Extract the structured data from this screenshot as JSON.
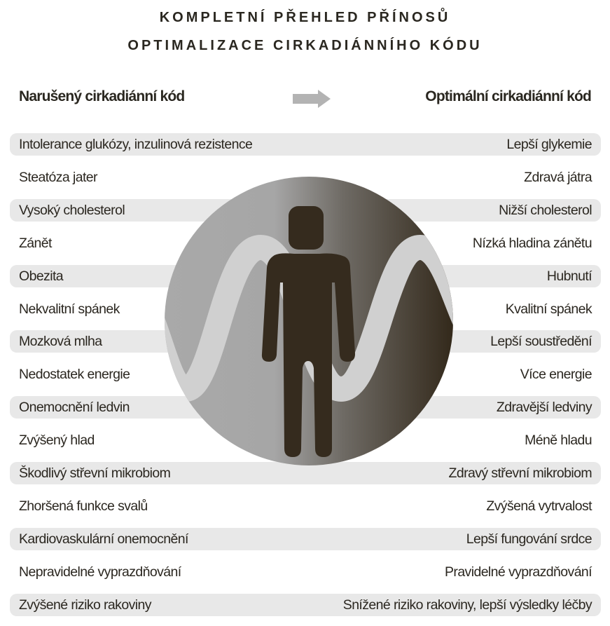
{
  "title": {
    "line1": "KOMPLETNÍ PŘEHLED PŘÍNOSŮ",
    "line2": "OPTIMALIZACE CIRKADIÁNNÍHO KÓDU"
  },
  "headers": {
    "left": "Narušený cirkadiánní kód",
    "right": "Optimální cirkadiánní kód",
    "arrow_icon": "arrow-right-icon"
  },
  "colors": {
    "row_shade": "#e8e8e8",
    "text": "#2b2720",
    "figure": "#352b1e",
    "arrow": "#b3b3b3"
  },
  "rows": [
    {
      "left": "Intolerance glukózy, inzulinová rezistence",
      "right": "Lepší glykemie"
    },
    {
      "left": "Steatóza jater",
      "right": "Zdravá játra"
    },
    {
      "left": "Vysoký cholesterol",
      "right": "Nižší cholesterol"
    },
    {
      "left": "Zánět",
      "right": "Nízká hladina zánětu"
    },
    {
      "left": "Obezita",
      "right": "Hubnutí"
    },
    {
      "left": "Nekvalitní spánek",
      "right": "Kvalitní spánek"
    },
    {
      "left": "Mozková mlha",
      "right": "Lepší soustředění"
    },
    {
      "left": "Nedostatek energie",
      "right": "Více energie"
    },
    {
      "left": "Onemocnění ledvin",
      "right": "Zdravější ledviny"
    },
    {
      "left": "Zvýšený hlad",
      "right": "Méně hladu"
    },
    {
      "left": "Škodlivý střevní mikrobiom",
      "right": "Zdravý střevní mikrobiom"
    },
    {
      "left": "Zhoršená funkce svalů",
      "right": "Zvýšená vytrvalost"
    },
    {
      "left": "Kardiovaskulární onemocnění",
      "right": "Lepší fungování srdce"
    },
    {
      "left": "Nepravidelné vyprazdňování",
      "right": "Pravidelné vyprazdňování"
    },
    {
      "left": "Zvýšené riziko rakoviny",
      "right": "Snížené riziko rakoviny, lepší výsledky léčby"
    }
  ]
}
